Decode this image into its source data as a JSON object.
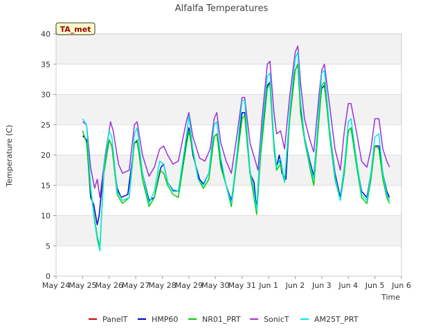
{
  "chart_data": {
    "type": "line",
    "title": "Alfalfa Temperatures",
    "xlabel": "Time",
    "ylabel": "Temperature (C)",
    "ylim": [
      0,
      40
    ],
    "xlim": [
      0,
      13
    ],
    "yticks": [
      0,
      5,
      10,
      15,
      20,
      25,
      30,
      35,
      40
    ],
    "xticks": [
      {
        "v": 0,
        "label": "May 24"
      },
      {
        "v": 1,
        "label": "May 25"
      },
      {
        "v": 2,
        "label": "May 26"
      },
      {
        "v": 3,
        "label": "May 27"
      },
      {
        "v": 4,
        "label": "May 28"
      },
      {
        "v": 5,
        "label": "May 29"
      },
      {
        "v": 6,
        "label": "May 30"
      },
      {
        "v": 7,
        "label": "May 31"
      },
      {
        "v": 8,
        "label": "Jun 1"
      },
      {
        "v": 9,
        "label": "Jun 2"
      },
      {
        "v": 10,
        "label": "Jun 3"
      },
      {
        "v": 11,
        "label": "Jun 4"
      },
      {
        "v": 12,
        "label": "Jun 5"
      },
      {
        "v": 13,
        "label": "Jun 6"
      }
    ],
    "grid": true,
    "legend_position": "bottom",
    "annotation": "TA_met",
    "series": [
      {
        "name": "PanelT",
        "color": "#cc0000",
        "points": []
      },
      {
        "name": "HMP60",
        "color": "#0000cc",
        "points": [
          [
            1.0,
            23.2
          ],
          [
            1.15,
            22.5
          ],
          [
            1.3,
            13
          ],
          [
            1.42,
            11.8
          ],
          [
            1.55,
            8.5
          ],
          [
            1.62,
            10
          ],
          [
            1.8,
            18
          ],
          [
            2.0,
            22.5
          ],
          [
            2.1,
            21.5
          ],
          [
            2.3,
            14.5
          ],
          [
            2.45,
            13
          ],
          [
            2.7,
            13.5
          ],
          [
            2.95,
            22
          ],
          [
            3.05,
            22.2
          ],
          [
            3.25,
            17
          ],
          [
            3.5,
            12.5
          ],
          [
            3.7,
            13
          ],
          [
            3.95,
            18
          ],
          [
            4.05,
            18.5
          ],
          [
            4.2,
            15.5
          ],
          [
            4.4,
            14.2
          ],
          [
            4.6,
            14
          ],
          [
            4.9,
            22
          ],
          [
            5.0,
            24.5
          ],
          [
            5.15,
            20
          ],
          [
            5.4,
            16
          ],
          [
            5.55,
            15.2
          ],
          [
            5.75,
            17
          ],
          [
            5.95,
            23
          ],
          [
            6.05,
            23.5
          ],
          [
            6.2,
            19
          ],
          [
            6.4,
            15
          ],
          [
            6.6,
            12.5
          ],
          [
            6.8,
            19
          ],
          [
            7.0,
            27
          ],
          [
            7.1,
            27
          ],
          [
            7.3,
            17
          ],
          [
            7.45,
            15.5
          ],
          [
            7.55,
            11
          ],
          [
            7.7,
            22
          ],
          [
            7.95,
            31.5
          ],
          [
            8.05,
            32
          ],
          [
            8.2,
            22
          ],
          [
            8.3,
            18
          ],
          [
            8.4,
            20
          ],
          [
            8.5,
            17
          ],
          [
            8.65,
            16
          ],
          [
            8.8,
            27
          ],
          [
            9.0,
            34
          ],
          [
            9.1,
            35
          ],
          [
            9.2,
            28
          ],
          [
            9.35,
            23
          ],
          [
            9.55,
            19
          ],
          [
            9.7,
            16.5
          ],
          [
            9.9,
            27
          ],
          [
            10.0,
            31
          ],
          [
            10.1,
            31.5
          ],
          [
            10.3,
            24
          ],
          [
            10.5,
            17
          ],
          [
            10.7,
            13
          ],
          [
            10.85,
            18
          ],
          [
            11.0,
            24
          ],
          [
            11.1,
            24.5
          ],
          [
            11.3,
            19
          ],
          [
            11.5,
            14
          ],
          [
            11.7,
            13
          ],
          [
            11.85,
            17
          ],
          [
            12.0,
            21.5
          ],
          [
            12.15,
            21.5
          ],
          [
            12.3,
            17
          ],
          [
            12.45,
            14
          ],
          [
            12.55,
            13
          ]
        ]
      },
      {
        "name": "NR01_PRT",
        "color": "#00cc00",
        "points": [
          [
            1.0,
            24
          ],
          [
            1.15,
            22
          ],
          [
            1.3,
            14
          ],
          [
            1.42,
            10.5
          ],
          [
            1.55,
            6.5
          ],
          [
            1.65,
            4.8
          ],
          [
            1.8,
            17
          ],
          [
            2.0,
            22.5
          ],
          [
            2.1,
            21.5
          ],
          [
            2.3,
            13.5
          ],
          [
            2.5,
            12
          ],
          [
            2.75,
            13
          ],
          [
            2.95,
            22
          ],
          [
            3.05,
            22.5
          ],
          [
            3.25,
            16
          ],
          [
            3.5,
            11.5
          ],
          [
            3.7,
            13
          ],
          [
            3.9,
            17.5
          ],
          [
            4.05,
            17
          ],
          [
            4.2,
            15
          ],
          [
            4.4,
            13.5
          ],
          [
            4.6,
            13
          ],
          [
            4.9,
            21.5
          ],
          [
            5.0,
            24
          ],
          [
            5.15,
            20.5
          ],
          [
            5.35,
            16
          ],
          [
            5.55,
            14.5
          ],
          [
            5.75,
            16
          ],
          [
            5.95,
            23
          ],
          [
            6.05,
            23.5
          ],
          [
            6.2,
            18
          ],
          [
            6.4,
            15
          ],
          [
            6.6,
            11.5
          ],
          [
            6.8,
            19
          ],
          [
            7.0,
            26
          ],
          [
            7.1,
            26.5
          ],
          [
            7.3,
            17
          ],
          [
            7.45,
            13
          ],
          [
            7.55,
            10.2
          ],
          [
            7.7,
            20
          ],
          [
            7.95,
            31
          ],
          [
            8.05,
            31.8
          ],
          [
            8.2,
            21
          ],
          [
            8.3,
            17.5
          ],
          [
            8.45,
            18.5
          ],
          [
            8.6,
            15.5
          ],
          [
            8.8,
            26
          ],
          [
            9.0,
            34
          ],
          [
            9.1,
            35
          ],
          [
            9.2,
            27
          ],
          [
            9.35,
            22.5
          ],
          [
            9.55,
            18
          ],
          [
            9.7,
            15
          ],
          [
            9.9,
            26
          ],
          [
            10.0,
            31.5
          ],
          [
            10.1,
            32
          ],
          [
            10.3,
            23
          ],
          [
            10.5,
            16
          ],
          [
            10.7,
            12.5
          ],
          [
            10.85,
            17
          ],
          [
            11.0,
            24
          ],
          [
            11.1,
            24.5
          ],
          [
            11.3,
            18.5
          ],
          [
            11.5,
            13
          ],
          [
            11.7,
            12
          ],
          [
            11.85,
            16
          ],
          [
            12.0,
            21.5
          ],
          [
            12.15,
            21
          ],
          [
            12.3,
            16
          ],
          [
            12.45,
            13
          ],
          [
            12.55,
            12
          ]
        ]
      },
      {
        "name": "SonicT",
        "color": "#9b30d9",
        "points": [
          [
            1.0,
            25.5
          ],
          [
            1.15,
            25
          ],
          [
            1.3,
            18
          ],
          [
            1.45,
            14.5
          ],
          [
            1.55,
            16
          ],
          [
            1.65,
            13
          ],
          [
            1.85,
            20
          ],
          [
            2.05,
            25.5
          ],
          [
            2.15,
            24
          ],
          [
            2.35,
            18.5
          ],
          [
            2.5,
            17
          ],
          [
            2.75,
            17.5
          ],
          [
            2.95,
            25
          ],
          [
            3.05,
            25.5
          ],
          [
            3.25,
            20
          ],
          [
            3.5,
            16.5
          ],
          [
            3.7,
            18
          ],
          [
            3.9,
            21
          ],
          [
            4.05,
            21.5
          ],
          [
            4.2,
            20
          ],
          [
            4.4,
            18.5
          ],
          [
            4.6,
            19
          ],
          [
            4.9,
            25.5
          ],
          [
            5.0,
            27
          ],
          [
            5.15,
            23
          ],
          [
            5.4,
            19.5
          ],
          [
            5.6,
            19
          ],
          [
            5.8,
            21
          ],
          [
            5.95,
            26
          ],
          [
            6.05,
            27
          ],
          [
            6.2,
            22
          ],
          [
            6.4,
            19
          ],
          [
            6.6,
            17
          ],
          [
            6.8,
            23
          ],
          [
            7.0,
            29.5
          ],
          [
            7.1,
            29.5
          ],
          [
            7.3,
            22
          ],
          [
            7.5,
            19
          ],
          [
            7.6,
            17.5
          ],
          [
            7.75,
            26
          ],
          [
            7.95,
            35
          ],
          [
            8.05,
            35.5
          ],
          [
            8.2,
            27
          ],
          [
            8.3,
            23.5
          ],
          [
            8.45,
            24
          ],
          [
            8.6,
            21
          ],
          [
            8.8,
            30
          ],
          [
            9.0,
            37
          ],
          [
            9.1,
            38
          ],
          [
            9.2,
            32
          ],
          [
            9.35,
            26
          ],
          [
            9.55,
            22.5
          ],
          [
            9.7,
            20.5
          ],
          [
            9.9,
            30
          ],
          [
            10.0,
            34
          ],
          [
            10.1,
            35
          ],
          [
            10.3,
            28
          ],
          [
            10.5,
            21
          ],
          [
            10.7,
            17.5
          ],
          [
            10.85,
            24
          ],
          [
            11.0,
            28.5
          ],
          [
            11.1,
            28.5
          ],
          [
            11.3,
            24
          ],
          [
            11.5,
            19
          ],
          [
            11.7,
            18
          ],
          [
            11.85,
            21
          ],
          [
            12.0,
            26
          ],
          [
            12.15,
            26
          ],
          [
            12.3,
            21
          ],
          [
            12.45,
            19
          ],
          [
            12.55,
            18
          ]
        ]
      },
      {
        "name": "AM25T_PRT",
        "color": "#00e5e5",
        "points": [
          [
            1.0,
            26
          ],
          [
            1.15,
            25
          ],
          [
            1.3,
            15
          ],
          [
            1.42,
            10
          ],
          [
            1.55,
            6
          ],
          [
            1.65,
            4.2
          ],
          [
            1.8,
            18
          ],
          [
            2.0,
            24
          ],
          [
            2.1,
            23
          ],
          [
            2.3,
            14
          ],
          [
            2.5,
            12.5
          ],
          [
            2.75,
            13
          ],
          [
            2.95,
            23.5
          ],
          [
            3.05,
            24.5
          ],
          [
            3.25,
            17
          ],
          [
            3.5,
            12
          ],
          [
            3.7,
            14
          ],
          [
            3.9,
            19
          ],
          [
            4.05,
            18.5
          ],
          [
            4.2,
            15.5
          ],
          [
            4.4,
            14
          ],
          [
            4.6,
            14
          ],
          [
            4.9,
            23
          ],
          [
            5.0,
            26.5
          ],
          [
            5.15,
            21
          ],
          [
            5.35,
            16
          ],
          [
            5.55,
            15
          ],
          [
            5.75,
            17
          ],
          [
            5.95,
            25
          ],
          [
            6.05,
            25.5
          ],
          [
            6.2,
            19.5
          ],
          [
            6.4,
            15
          ],
          [
            6.6,
            12
          ],
          [
            6.8,
            20
          ],
          [
            7.0,
            29
          ],
          [
            7.1,
            29
          ],
          [
            7.3,
            17.5
          ],
          [
            7.45,
            14
          ],
          [
            7.55,
            10.8
          ],
          [
            7.7,
            22
          ],
          [
            7.95,
            33
          ],
          [
            8.05,
            33.5
          ],
          [
            8.2,
            22
          ],
          [
            8.3,
            18
          ],
          [
            8.45,
            19.5
          ],
          [
            8.6,
            15.5
          ],
          [
            8.8,
            27.5
          ],
          [
            9.0,
            36
          ],
          [
            9.1,
            37
          ],
          [
            9.2,
            29
          ],
          [
            9.35,
            23
          ],
          [
            9.55,
            18.5
          ],
          [
            9.7,
            16
          ],
          [
            9.9,
            28
          ],
          [
            10.0,
            33.5
          ],
          [
            10.1,
            34
          ],
          [
            10.3,
            24
          ],
          [
            10.5,
            16.5
          ],
          [
            10.7,
            12.5
          ],
          [
            10.85,
            18
          ],
          [
            11.0,
            25.5
          ],
          [
            11.1,
            26
          ],
          [
            11.3,
            19.5
          ],
          [
            11.5,
            13.5
          ],
          [
            11.7,
            12.5
          ],
          [
            11.85,
            17
          ],
          [
            12.0,
            23
          ],
          [
            12.15,
            23.5
          ],
          [
            12.3,
            17
          ],
          [
            12.45,
            13.5
          ],
          [
            12.55,
            12.5
          ]
        ]
      }
    ]
  }
}
